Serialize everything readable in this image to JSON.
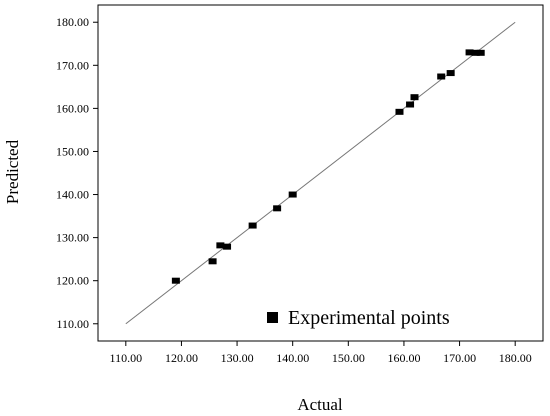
{
  "chart_data": {
    "type": "scatter",
    "xlabel": "Actual",
    "ylabel": "Predicted",
    "xlim": [
      105,
      185
    ],
    "ylim": [
      106,
      184
    ],
    "x_ticks": [
      "110.00",
      "120.00",
      "130.00",
      "140.00",
      "150.00",
      "160.00",
      "170.00",
      "180.00"
    ],
    "y_ticks": [
      "110.00",
      "120.00",
      "130.00",
      "140.00",
      "150.00",
      "160.00",
      "170.00",
      "180.00"
    ],
    "x_tick_values": [
      110,
      120,
      130,
      140,
      150,
      160,
      170,
      180
    ],
    "y_tick_values": [
      110,
      120,
      130,
      140,
      150,
      160,
      170,
      180
    ],
    "grid": false,
    "legend": {
      "label": "Experimental points",
      "placement": "bottom-right"
    },
    "reference_line": {
      "from": [
        110,
        110
      ],
      "to": [
        180,
        180
      ]
    },
    "series": [
      {
        "name": "Experimental points",
        "color": "#000000",
        "marker": "square",
        "points": [
          [
            119.0,
            120.0
          ],
          [
            125.6,
            124.5
          ],
          [
            127.0,
            128.2
          ],
          [
            128.2,
            127.9
          ],
          [
            132.8,
            132.8
          ],
          [
            137.2,
            136.8
          ],
          [
            140.0,
            140.0
          ],
          [
            159.2,
            159.2
          ],
          [
            161.1,
            160.9
          ],
          [
            161.9,
            162.6
          ],
          [
            166.7,
            167.4
          ],
          [
            168.4,
            168.2
          ],
          [
            171.8,
            173.0
          ],
          [
            172.9,
            172.9
          ],
          [
            173.8,
            172.9
          ]
        ]
      }
    ]
  }
}
